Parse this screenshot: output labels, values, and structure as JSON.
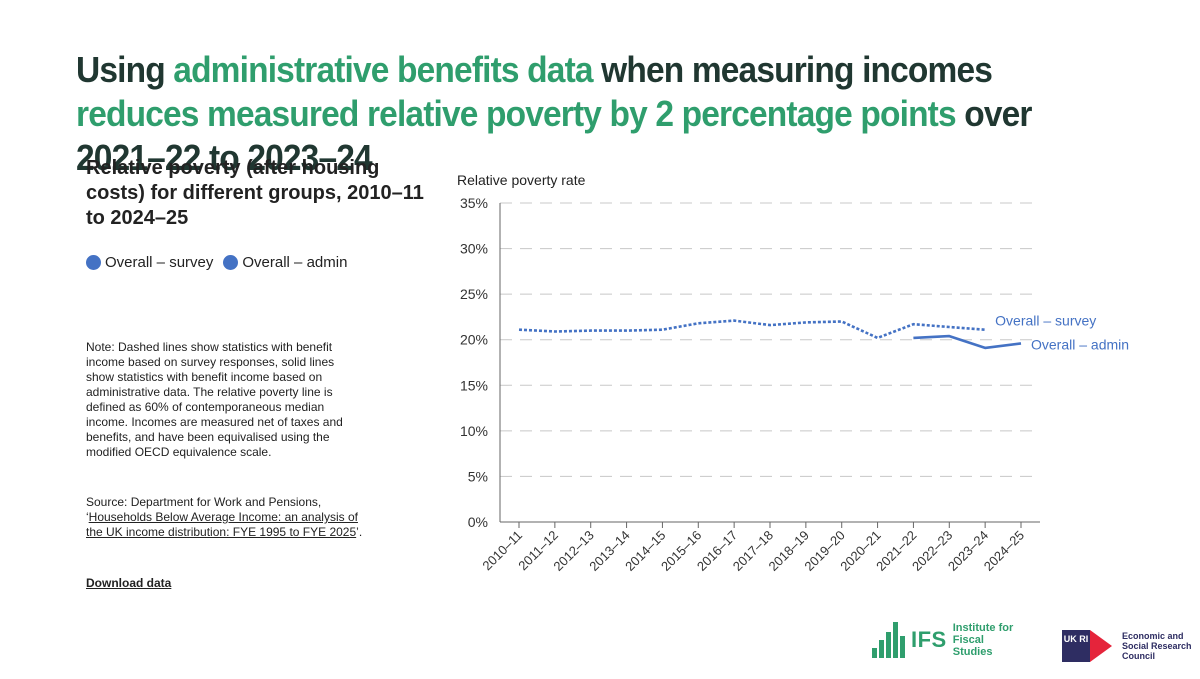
{
  "headline": {
    "p1": "Using ",
    "h1": "administrative benefits data",
    "p2": " when measuring incomes ",
    "h2": "reduces measured relative poverty by 2 percentage points",
    "p3": " over 2021–22 to 2023–24"
  },
  "subtitle": "Relative poverty (after housing costs) for different groups, 2010–11 to 2024–25",
  "legend": [
    {
      "label": "Overall – survey"
    },
    {
      "label": "Overall – admin"
    }
  ],
  "note": "Note: Dashed lines show statistics with benefit income based on survey responses, solid lines show statistics with benefit income based on administrative data. The relative poverty line is defined as 60% of contemporaneous median income. Incomes are measured net of taxes and benefits, and have been equivalised using the modified OECD equivalence scale.",
  "source": {
    "prefix": "Source: Department for Work and Pensions, ‘",
    "link": "Households Below Average Income: an analysis of the UK income distribution: FYE 1995 to FYE 2025",
    "suffix": "’."
  },
  "download": "Download data",
  "logos": {
    "ifs_short": "IFS",
    "ifs_name": "Institute for Fiscal Studies",
    "ukri": "UK RI",
    "esrc": "Economic and Social Research Council"
  },
  "colors": {
    "series": "#4472c4",
    "accent": "#2f9e6d",
    "grid": "#c8c8c8"
  },
  "chart_data": {
    "type": "line",
    "ylabel": "Relative poverty rate",
    "ylim": [
      0,
      35
    ],
    "yticks": [
      0,
      5,
      10,
      15,
      20,
      25,
      30,
      35
    ],
    "ytick_labels": [
      "0%",
      "5%",
      "10%",
      "15%",
      "20%",
      "25%",
      "30%",
      "35%"
    ],
    "categories": [
      "2010–11",
      "2011–12",
      "2012–13",
      "2013–14",
      "2014–15",
      "2015–16",
      "2016–17",
      "2017–18",
      "2018–19",
      "2019–20",
      "2020–21",
      "2021–22",
      "2022–23",
      "2023–24",
      "2024–25"
    ],
    "series": [
      {
        "name": "Overall – survey",
        "style": "dashed",
        "values": [
          21.1,
          20.9,
          21.0,
          21.0,
          21.1,
          21.8,
          22.1,
          21.6,
          21.9,
          22.0,
          20.2,
          21.7,
          21.4,
          21.1,
          null
        ]
      },
      {
        "name": "Overall – admin",
        "style": "solid",
        "values": [
          null,
          null,
          null,
          null,
          null,
          null,
          null,
          null,
          null,
          null,
          null,
          20.2,
          20.4,
          19.1,
          19.6
        ]
      }
    ],
    "grid": true
  }
}
